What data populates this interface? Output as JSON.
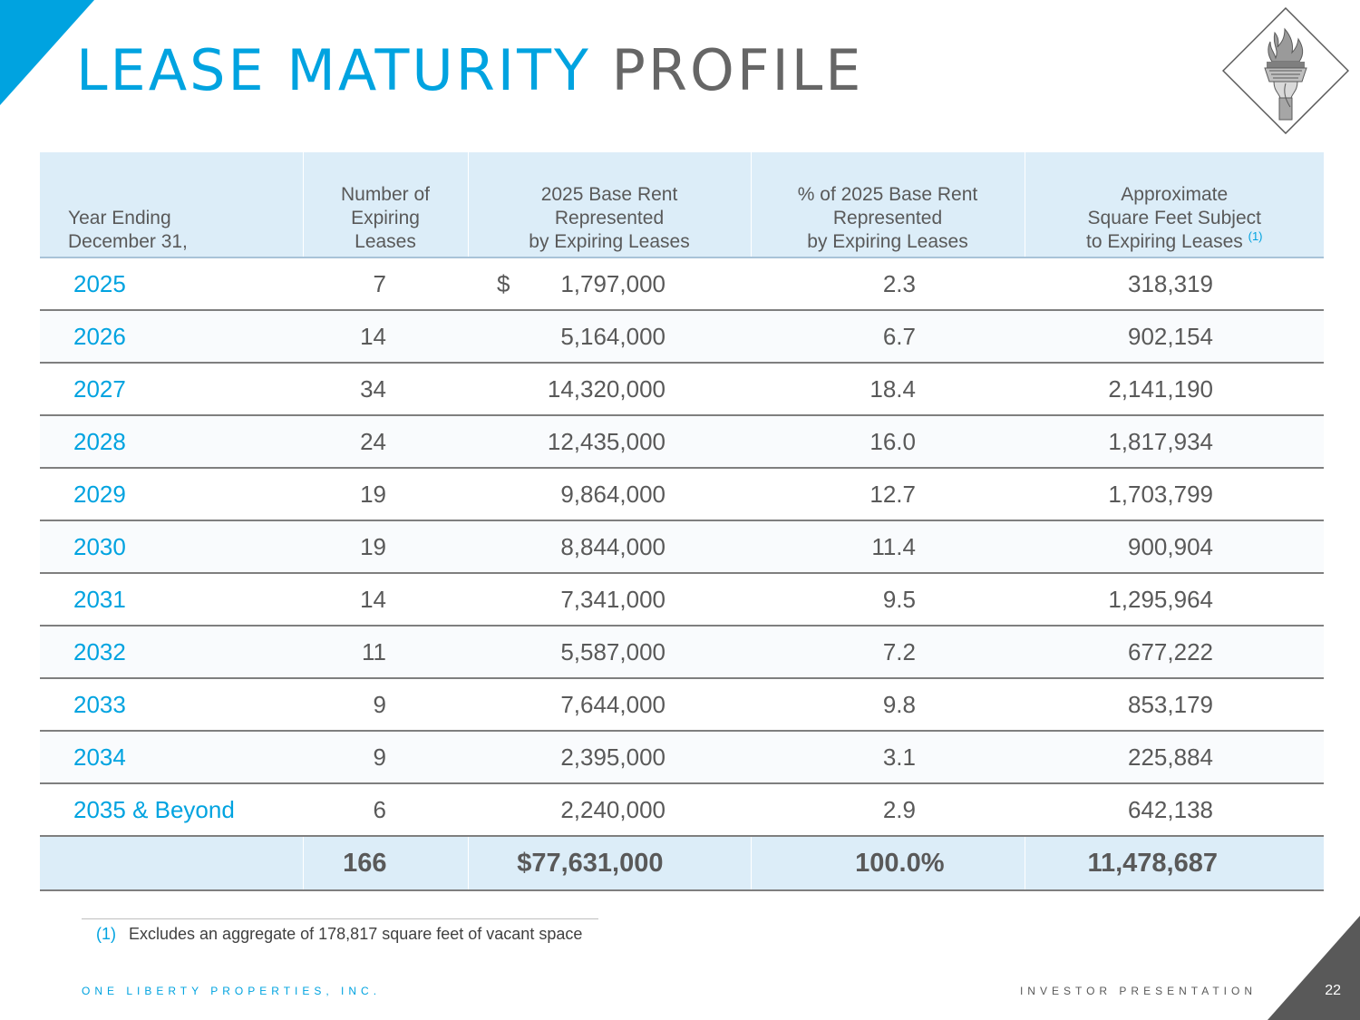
{
  "colors": {
    "accent": "#00a3e0",
    "header_fill": "#dcedf8",
    "text": "#595959",
    "corner_dark": "#595959"
  },
  "title": {
    "part1": "LEASE MATURITY",
    "part2": "PROFILE"
  },
  "table": {
    "headers": {
      "year": [
        "Year Ending",
        "December 31,"
      ],
      "count": [
        "Number of",
        "Expiring",
        "Leases"
      ],
      "rent": [
        "2025 Base Rent",
        "Represented",
        "by Expiring Leases"
      ],
      "pct": [
        "% of 2025 Base Rent",
        "Represented",
        "by Expiring Leases"
      ],
      "sqft": [
        "Approximate",
        "Square Feet Subject",
        "to Expiring Leases"
      ],
      "sqft_note": "(1)"
    },
    "currency_symbol": "$",
    "rows": [
      {
        "year": "2025",
        "count": "7",
        "rent": "1,797,000",
        "pct": "2.3",
        "sqft": "318,319"
      },
      {
        "year": "2026",
        "count": "14",
        "rent": "5,164,000",
        "pct": "6.7",
        "sqft": "902,154"
      },
      {
        "year": "2027",
        "count": "34",
        "rent": "14,320,000",
        "pct": "18.4",
        "sqft": "2,141,190"
      },
      {
        "year": "2028",
        "count": "24",
        "rent": "12,435,000",
        "pct": "16.0",
        "sqft": "1,817,934"
      },
      {
        "year": "2029",
        "count": "19",
        "rent": "9,864,000",
        "pct": "12.7",
        "sqft": "1,703,799"
      },
      {
        "year": "2030",
        "count": "19",
        "rent": "8,844,000",
        "pct": "11.4",
        "sqft": "900,904"
      },
      {
        "year": "2031",
        "count": "14",
        "rent": "7,341,000",
        "pct": "9.5",
        "sqft": "1,295,964"
      },
      {
        "year": "2032",
        "count": "11",
        "rent": "5,587,000",
        "pct": "7.2",
        "sqft": "677,222"
      },
      {
        "year": "2033",
        "count": "9",
        "rent": "7,644,000",
        "pct": "9.8",
        "sqft": "853,179"
      },
      {
        "year": "2034",
        "count": "9",
        "rent": "2,395,000",
        "pct": "3.1",
        "sqft": "225,884"
      },
      {
        "year": "2035 & Beyond",
        "count": "6",
        "rent": "2,240,000",
        "pct": "2.9",
        "sqft": "642,138"
      }
    ],
    "total": {
      "count": "166",
      "rent": "$77,631,000",
      "pct": "100.0%",
      "sqft": "11,478,687"
    }
  },
  "footnote": {
    "mark": "(1)",
    "text": "Excludes an aggregate of 178,817 square feet of vacant space"
  },
  "footer": {
    "company": "ONE LIBERTY PROPERTIES, INC.",
    "label": "INVESTOR PRESENTATION",
    "page": "22"
  },
  "logo_icon": "statue-of-liberty-torch-icon"
}
